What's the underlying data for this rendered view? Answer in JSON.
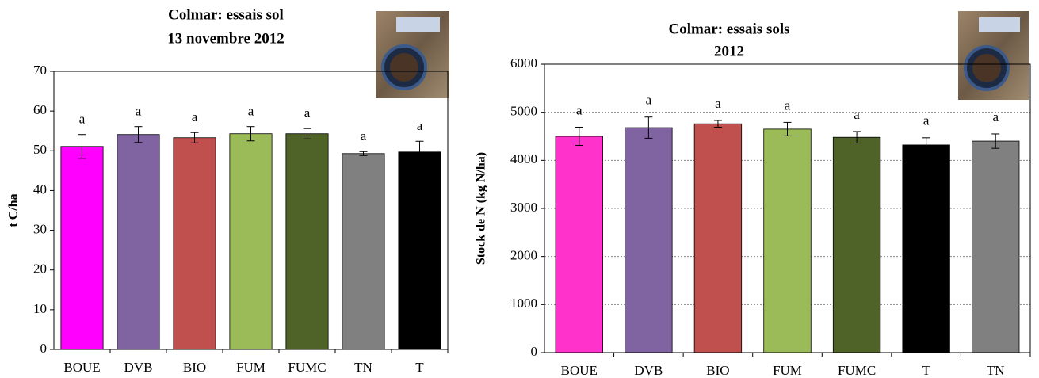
{
  "chart_data": [
    {
      "type": "bar",
      "title": [
        "Colmar: essais sol",
        "13 novembre 2012"
      ],
      "y_label": "t C/ha",
      "categories": [
        "BOUE",
        "DVB",
        "BIO",
        "FUM",
        "FUMC",
        "TN",
        "T"
      ],
      "values": [
        51.1,
        54.1,
        53.3,
        54.3,
        54.3,
        49.3,
        49.7
      ],
      "errors": [
        3,
        2,
        1.3,
        1.8,
        1.3,
        0.5,
        2.7
      ],
      "letters": [
        "a",
        "a",
        "a",
        "a",
        "a",
        "a",
        "a"
      ],
      "colors": [
        "#ff00ff",
        "#8064a2",
        "#c0504d",
        "#9bbb59",
        "#4f6228",
        "#808080",
        "#000000"
      ],
      "ylim": [
        0,
        70
      ],
      "yticks": [
        0,
        10,
        20,
        30,
        40,
        50,
        60,
        70
      ],
      "grid": false
    },
    {
      "type": "bar",
      "title": [
        "Colmar: essais sols",
        "2012"
      ],
      "y_label": "Stock de N (kg N/ha)",
      "categories": [
        "BOUE",
        "DVB",
        "BIO",
        "FUM",
        "FUMC",
        "T",
        "TN"
      ],
      "values": [
        4500,
        4680,
        4760,
        4650,
        4480,
        4320,
        4400
      ],
      "errors": [
        190,
        220,
        70,
        140,
        120,
        150,
        150
      ],
      "letters": [
        "a",
        "a",
        "a",
        "a",
        "a",
        "a",
        "a"
      ],
      "colors": [
        "#ff33cc",
        "#8064a2",
        "#c0504d",
        "#9bbb59",
        "#4f6228",
        "#000000",
        "#808080"
      ],
      "ylim": [
        0,
        6000
      ],
      "yticks": [
        0,
        1000,
        2000,
        3000,
        4000,
        5000,
        6000
      ],
      "grid": true
    }
  ]
}
